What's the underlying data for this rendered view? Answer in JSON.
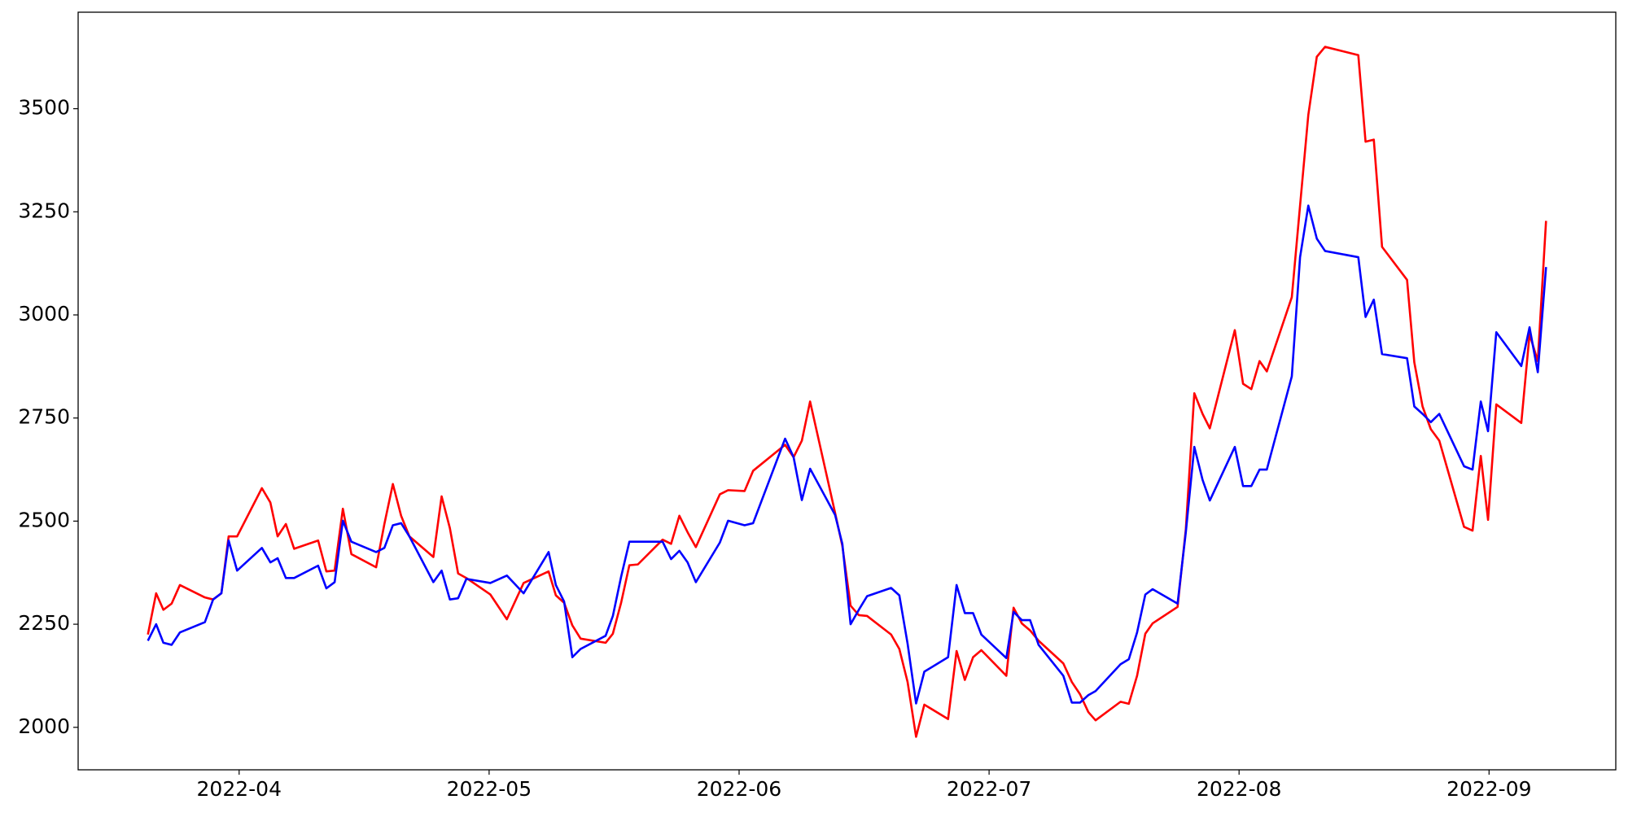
{
  "chart_data": {
    "type": "line",
    "x": [
      3.635,
      3.668,
      3.697,
      3.73,
      3.763,
      3.863,
      3.896,
      3.929,
      3.958,
      3.992,
      4.091,
      4.125,
      4.154,
      4.187,
      4.22,
      4.316,
      4.349,
      4.382,
      4.415,
      4.449,
      4.548,
      4.581,
      4.615,
      4.648,
      4.681,
      4.777,
      4.81,
      4.843,
      4.876,
      4.909,
      5.005,
      5.071,
      5.138,
      5.238,
      5.267,
      5.3,
      5.333,
      5.366,
      5.466,
      5.495,
      5.528,
      5.561,
      5.595,
      5.694,
      5.728,
      5.761,
      5.794,
      5.827,
      5.923,
      5.956,
      6.022,
      6.056,
      6.184,
      6.218,
      6.251,
      6.284,
      6.384,
      6.413,
      6.446,
      6.479,
      6.512,
      6.608,
      6.641,
      6.674,
      6.708,
      6.741,
      6.836,
      6.87,
      6.903,
      6.936,
      6.969,
      7.069,
      7.098,
      7.131,
      7.164,
      7.198,
      7.297,
      7.331,
      7.364,
      7.397,
      7.426,
      7.526,
      7.559,
      7.592,
      7.625,
      7.654,
      7.754,
      7.787,
      7.821,
      7.854,
      7.883,
      7.983,
      8.016,
      8.049,
      8.082,
      8.111,
      8.211,
      8.244,
      8.277,
      8.311,
      8.344,
      8.477,
      8.506,
      8.539,
      8.572,
      8.672,
      8.701,
      8.734,
      8.767,
      8.801,
      8.9,
      8.934,
      8.967,
      8.996,
      9.029,
      9.129,
      9.162,
      9.195,
      9.228
    ],
    "series": [
      {
        "color": "#ff0000",
        "values": [
          2225,
          2325,
          2285,
          2300,
          2345,
          2315,
          2310,
          2325,
          2463,
          2463,
          2580,
          2545,
          2463,
          2493,
          2433,
          2453,
          2378,
          2380,
          2530,
          2420,
          2388,
          2493,
          2590,
          2513,
          2463,
          2413,
          2560,
          2483,
          2373,
          2362,
          2322,
          2262,
          2350,
          2378,
          2320,
          2302,
          2247,
          2215,
          2205,
          2227,
          2302,
          2393,
          2395,
          2455,
          2445,
          2513,
          2473,
          2437,
          2565,
          2575,
          2573,
          2622,
          2685,
          2655,
          2695,
          2790,
          2520,
          2440,
          2295,
          2272,
          2270,
          2225,
          2190,
          2110,
          1977,
          2055,
          2020,
          2185,
          2115,
          2170,
          2187,
          2125,
          2290,
          2252,
          2235,
          2210,
          2155,
          2110,
          2080,
          2037,
          2017,
          2062,
          2057,
          2125,
          2227,
          2252,
          2292,
          2480,
          2810,
          2760,
          2725,
          2963,
          2833,
          2820,
          2888,
          2863,
          3043,
          3265,
          3485,
          3626,
          3650,
          3630,
          3420,
          3425,
          3165,
          3085,
          2885,
          2778,
          2723,
          2695,
          2486,
          2477,
          2658,
          2503,
          2783,
          2738,
          2953,
          2888,
          3228
        ]
      },
      {
        "color": "#0000ff",
        "values": [
          2210,
          2250,
          2205,
          2200,
          2230,
          2255,
          2310,
          2325,
          2453,
          2380,
          2435,
          2400,
          2410,
          2362,
          2362,
          2392,
          2337,
          2352,
          2501,
          2450,
          2425,
          2435,
          2490,
          2495,
          2463,
          2352,
          2380,
          2310,
          2313,
          2360,
          2350,
          2368,
          2325,
          2425,
          2345,
          2305,
          2170,
          2190,
          2222,
          2270,
          2365,
          2450,
          2450,
          2450,
          2408,
          2428,
          2400,
          2352,
          2448,
          2501,
          2490,
          2495,
          2700,
          2655,
          2551,
          2627,
          2515,
          2445,
          2250,
          2285,
          2318,
          2338,
          2320,
          2203,
          2058,
          2135,
          2170,
          2345,
          2277,
          2277,
          2225,
          2168,
          2280,
          2260,
          2260,
          2200,
          2125,
          2060,
          2060,
          2078,
          2088,
          2153,
          2165,
          2230,
          2322,
          2335,
          2300,
          2473,
          2680,
          2600,
          2550,
          2680,
          2585,
          2585,
          2625,
          2625,
          2851,
          3140,
          3265,
          3185,
          3155,
          3140,
          2995,
          3037,
          2905,
          2895,
          2778,
          2760,
          2740,
          2760,
          2633,
          2625,
          2790,
          2718,
          2958,
          2876,
          2970,
          2861,
          3116
        ]
      }
    ],
    "xlim": [
      3.356,
      9.507
    ],
    "xticks": [
      {
        "value": 4,
        "label": "2022-04"
      },
      {
        "value": 5,
        "label": "2022-05"
      },
      {
        "value": 6,
        "label": "2022-06"
      },
      {
        "value": 7,
        "label": "2022-07"
      },
      {
        "value": 8,
        "label": "2022-08"
      },
      {
        "value": 9,
        "label": "2022-09"
      }
    ],
    "ylim": [
      1897,
      3734
    ],
    "yticks": [
      2000,
      2250,
      2500,
      2750,
      3000,
      3250,
      3500
    ]
  }
}
